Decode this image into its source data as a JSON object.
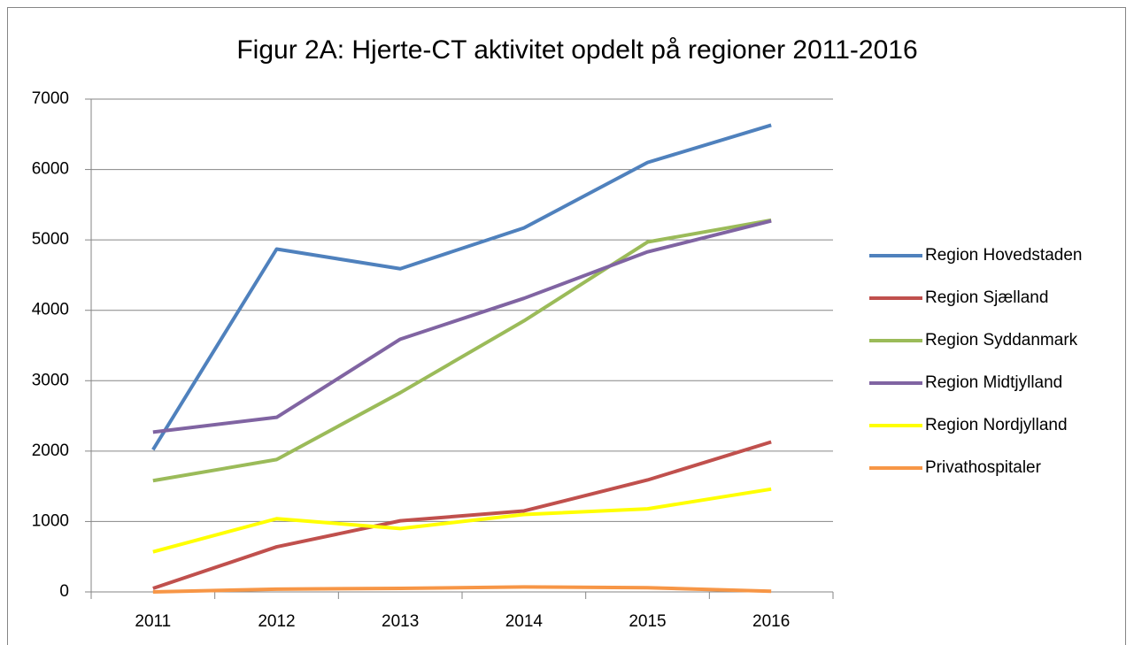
{
  "chart_data": {
    "type": "line",
    "title": "Figur 2A: Hjerte-CT aktivitet opdelt på regioner 2011-2016",
    "categories": [
      "2011",
      "2012",
      "2013",
      "2014",
      "2015",
      "2016"
    ],
    "series": [
      {
        "name": "Region Hovedstaden",
        "color": "#4f81bd",
        "values": [
          2020,
          4870,
          4590,
          5170,
          6100,
          6630
        ]
      },
      {
        "name": "Region Sjælland",
        "color": "#c0504d",
        "values": [
          50,
          640,
          1010,
          1150,
          1590,
          2130
        ]
      },
      {
        "name": "Region Syddanmark",
        "color": "#9bbb59",
        "values": [
          1580,
          1880,
          2830,
          3850,
          4970,
          5280
        ]
      },
      {
        "name": "Region Midtjylland",
        "color": "#8064a2",
        "values": [
          2270,
          2480,
          3590,
          4170,
          4830,
          5270
        ]
      },
      {
        "name": "Region Nordjylland",
        "color": "#ffff00",
        "values": [
          570,
          1040,
          900,
          1100,
          1180,
          1460
        ]
      },
      {
        "name": "Privathospitaler",
        "color": "#f79646",
        "values": [
          0,
          40,
          50,
          70,
          60,
          10
        ]
      }
    ],
    "ylim": [
      0,
      7000
    ],
    "yticks": [
      0,
      1000,
      2000,
      3000,
      4000,
      5000,
      6000,
      7000
    ],
    "grid": true,
    "legend": "right"
  }
}
